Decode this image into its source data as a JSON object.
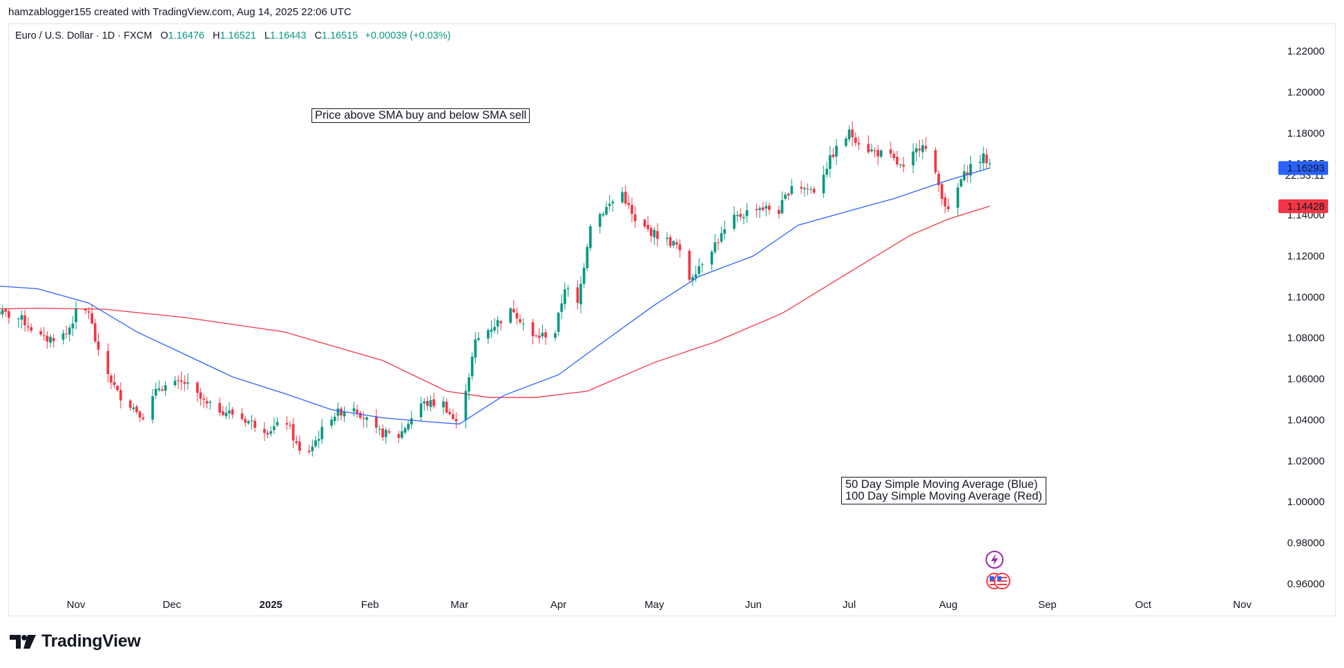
{
  "header": {
    "attribution": "hamzablogger155 created with TradingView.com, Aug 14, 2025 22:06 UTC"
  },
  "legend": {
    "symbol": "Euro / U.S. Dollar · 1D · FXCM",
    "open_label": "O",
    "open": "1.16476",
    "high_label": "H",
    "high": "1.16521",
    "low_label": "L",
    "low": "1.16443",
    "close_label": "C",
    "close": "1.16515",
    "change": "+0.00039 (+0.03%)"
  },
  "annotations": {
    "strategy_note": "Price above SMA buy and below SMA sell",
    "sma_note_line1": "50 Day Simple Moving Average (Blue)",
    "sma_note_line2": "100 Day Simple Moving Average (Red)"
  },
  "price_scale": {
    "last_price": "1.16515",
    "countdown": "22:53:11",
    "sma50_value": "1.16293",
    "sma100_value": "1.14428"
  },
  "footer": {
    "brand": "TradingView"
  },
  "colors": {
    "up": "#089981",
    "down": "#f23645",
    "sma50": "#2962ff",
    "sma100": "#f23645",
    "sma50_tag": "#2962ff",
    "sma100_tag": "#f23645"
  },
  "chart_data": {
    "type": "candlestick",
    "title": "Euro / U.S. Dollar · 1D · FXCM",
    "ylim": [
      0.95,
      1.225
    ],
    "y_ticks": [
      "0.96000",
      "0.98000",
      "1.00000",
      "1.02000",
      "1.04000",
      "1.06000",
      "1.08000",
      "1.10000",
      "1.12000",
      "1.14000",
      "1.16515",
      "1.18000",
      "1.20000",
      "1.22000"
    ],
    "x_ticks": [
      {
        "label": "Nov",
        "date": "2024-11-01",
        "bold": false
      },
      {
        "label": "Dec",
        "date": "2024-12-01",
        "bold": false
      },
      {
        "label": "2025",
        "date": "2025-01-01",
        "bold": true
      },
      {
        "label": "Feb",
        "date": "2025-02-01",
        "bold": false
      },
      {
        "label": "Mar",
        "date": "2025-03-01",
        "bold": false
      },
      {
        "label": "Apr",
        "date": "2025-04-01",
        "bold": false
      },
      {
        "label": "May",
        "date": "2025-05-01",
        "bold": false
      },
      {
        "label": "Jun",
        "date": "2025-06-01",
        "bold": false
      },
      {
        "label": "Jul",
        "date": "2025-07-01",
        "bold": false
      },
      {
        "label": "Aug",
        "date": "2025-08-01",
        "bold": false
      },
      {
        "label": "Sep",
        "date": "2025-09-01",
        "bold": false
      },
      {
        "label": "Oct",
        "date": "2025-10-01",
        "bold": false
      },
      {
        "label": "Nov",
        "date": "2025-11-01",
        "bold": false
      }
    ],
    "close_anchors": [
      [
        "2024-10-07",
        1.093
      ],
      [
        "2024-10-15",
        1.089
      ],
      [
        "2024-10-22",
        1.079
      ],
      [
        "2024-10-29",
        1.082
      ],
      [
        "2024-11-01",
        1.092
      ],
      [
        "2024-11-05",
        1.093
      ],
      [
        "2024-11-08",
        1.072
      ],
      [
        "2024-11-14",
        1.053
      ],
      [
        "2024-11-22",
        1.042
      ],
      [
        "2024-11-27",
        1.056
      ],
      [
        "2024-12-05",
        1.058
      ],
      [
        "2024-12-12",
        1.047
      ],
      [
        "2024-12-20",
        1.043
      ],
      [
        "2024-12-31",
        1.035
      ],
      [
        "2025-01-06",
        1.039
      ],
      [
        "2025-01-10",
        1.024
      ],
      [
        "2025-01-13",
        1.025
      ],
      [
        "2025-01-20",
        1.042
      ],
      [
        "2025-01-27",
        1.047
      ],
      [
        "2025-02-03",
        1.034
      ],
      [
        "2025-02-10",
        1.032
      ],
      [
        "2025-02-17",
        1.048
      ],
      [
        "2025-02-24",
        1.048
      ],
      [
        "2025-02-28",
        1.038
      ],
      [
        "2025-03-04",
        1.062
      ],
      [
        "2025-03-06",
        1.078
      ],
      [
        "2025-03-10",
        1.084
      ],
      [
        "2025-03-18",
        1.094
      ],
      [
        "2025-03-24",
        1.08
      ],
      [
        "2025-03-31",
        1.083
      ],
      [
        "2025-04-03",
        1.105
      ],
      [
        "2025-04-07",
        1.096
      ],
      [
        "2025-04-11",
        1.136
      ],
      [
        "2025-04-21",
        1.151
      ],
      [
        "2025-04-25",
        1.136
      ],
      [
        "2025-05-02",
        1.13
      ],
      [
        "2025-05-08",
        1.125
      ],
      [
        "2025-05-12",
        1.109
      ],
      [
        "2025-05-19",
        1.124
      ],
      [
        "2025-05-26",
        1.138
      ],
      [
        "2025-06-02",
        1.144
      ],
      [
        "2025-06-09",
        1.142
      ],
      [
        "2025-06-13",
        1.155
      ],
      [
        "2025-06-20",
        1.152
      ],
      [
        "2025-06-26",
        1.17
      ],
      [
        "2025-07-01",
        1.18
      ],
      [
        "2025-07-07",
        1.172
      ],
      [
        "2025-07-14",
        1.168
      ],
      [
        "2025-07-18",
        1.162
      ],
      [
        "2025-07-24",
        1.176
      ],
      [
        "2025-07-28",
        1.159
      ],
      [
        "2025-08-01",
        1.141
      ],
      [
        "2025-08-05",
        1.157
      ],
      [
        "2025-08-08",
        1.164
      ],
      [
        "2025-08-12",
        1.168
      ],
      [
        "2025-08-14",
        1.16515
      ]
    ],
    "sma50_points": [
      [
        "2024-10-01",
        1.106
      ],
      [
        "2024-10-20",
        1.104
      ],
      [
        "2024-11-05",
        1.097
      ],
      [
        "2024-11-20",
        1.083
      ],
      [
        "2024-12-05",
        1.072
      ],
      [
        "2024-12-20",
        1.061
      ],
      [
        "2025-01-05",
        1.053
      ],
      [
        "2025-01-20",
        1.045
      ],
      [
        "2025-02-05",
        1.041
      ],
      [
        "2025-02-20",
        1.039
      ],
      [
        "2025-03-01",
        1.038
      ],
      [
        "2025-03-15",
        1.052
      ],
      [
        "2025-04-01",
        1.062
      ],
      [
        "2025-04-15",
        1.078
      ],
      [
        "2025-05-01",
        1.096
      ],
      [
        "2025-05-15",
        1.11
      ],
      [
        "2025-06-01",
        1.12
      ],
      [
        "2025-06-15",
        1.135
      ],
      [
        "2025-07-01",
        1.142
      ],
      [
        "2025-07-15",
        1.148
      ],
      [
        "2025-08-01",
        1.157
      ],
      [
        "2025-08-14",
        1.16293
      ]
    ],
    "sma100_points": [
      [
        "2024-10-01",
        1.094
      ],
      [
        "2024-10-20",
        1.0945
      ],
      [
        "2024-11-10",
        1.094
      ],
      [
        "2024-12-05",
        1.09
      ],
      [
        "2025-01-05",
        1.083
      ],
      [
        "2025-02-05",
        1.069
      ],
      [
        "2025-02-25",
        1.054
      ],
      [
        "2025-03-10",
        1.051
      ],
      [
        "2025-03-25",
        1.051
      ],
      [
        "2025-04-10",
        1.054
      ],
      [
        "2025-05-01",
        1.068
      ],
      [
        "2025-05-20",
        1.078
      ],
      [
        "2025-06-10",
        1.092
      ],
      [
        "2025-07-01",
        1.112
      ],
      [
        "2025-07-20",
        1.13
      ],
      [
        "2025-08-01",
        1.138
      ],
      [
        "2025-08-14",
        1.14428
      ]
    ]
  }
}
